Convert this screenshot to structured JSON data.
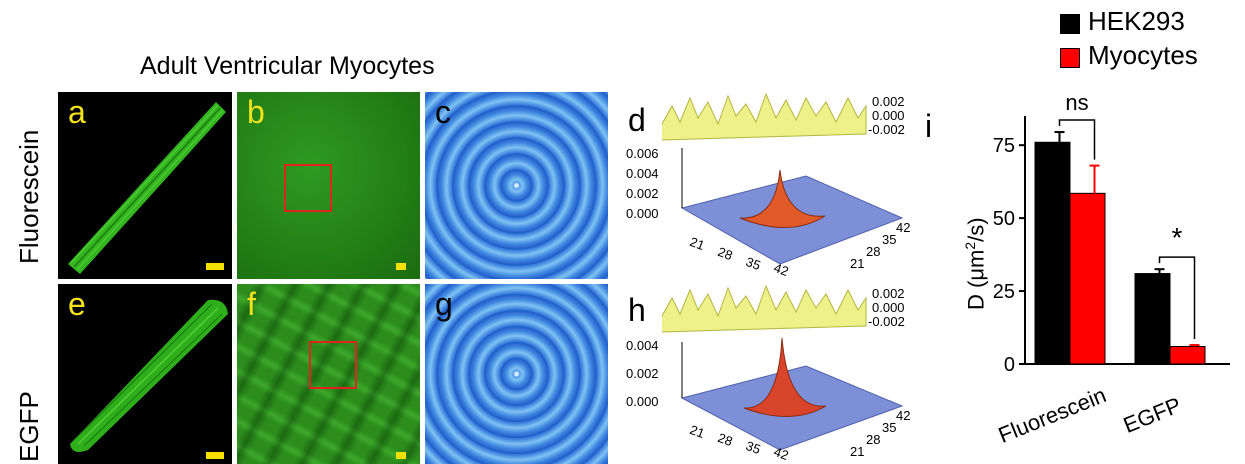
{
  "figure": {
    "title": "Adult Ventricular Myocytes",
    "rows": [
      "Fluorescein",
      "EGFP"
    ],
    "panels": {
      "a": "a",
      "b": "b",
      "c": "c",
      "d": "d",
      "e": "e",
      "f": "f",
      "g": "g",
      "h": "h",
      "i": "i"
    },
    "surface_d": {
      "z_ticks_main": [
        "0.006",
        "0.004",
        "0.002",
        "0.000"
      ],
      "z_ticks_residual": [
        "0.002",
        "0.000",
        "-0.002"
      ],
      "x_ticks": [
        "21",
        "28",
        "35",
        "42"
      ],
      "y_ticks": [
        "42",
        "35",
        "28",
        "21"
      ]
    },
    "surface_h": {
      "z_ticks_main": [
        "0.004",
        "0.002",
        "0.000"
      ],
      "z_ticks_residual": [
        "0.002",
        "0.000",
        "-0.002"
      ],
      "x_ticks": [
        "21",
        "28",
        "35",
        "42"
      ],
      "y_ticks": [
        "42",
        "35",
        "28",
        "21"
      ]
    },
    "colors": {
      "hek293": "#000000",
      "myocytes": "#ff0000",
      "label_yellow": "#f4e21a",
      "roi_red": "#e0241f"
    }
  },
  "chart_data": {
    "type": "bar",
    "categories": [
      "Fluorescein",
      "EGFP"
    ],
    "series": [
      {
        "name": "HEK293",
        "values": [
          76,
          31
        ],
        "errors": [
          3.5,
          1.5
        ]
      },
      {
        "name": "Myocytes",
        "values": [
          58.5,
          6
        ],
        "errors": [
          9.5,
          0.5
        ]
      }
    ],
    "ylabel_main": "D (",
    "ylabel_unit": "μm",
    "ylabel_sup": "2",
    "ylabel_end": "/s)",
    "yticks": [
      0,
      25,
      50,
      75
    ],
    "ylim": [
      0,
      85
    ],
    "legend": [
      "HEK293",
      "Myocytes"
    ],
    "annotations": [
      {
        "category": "Fluorescein",
        "text": "ns"
      },
      {
        "category": "EGFP",
        "text": "*"
      }
    ]
  }
}
